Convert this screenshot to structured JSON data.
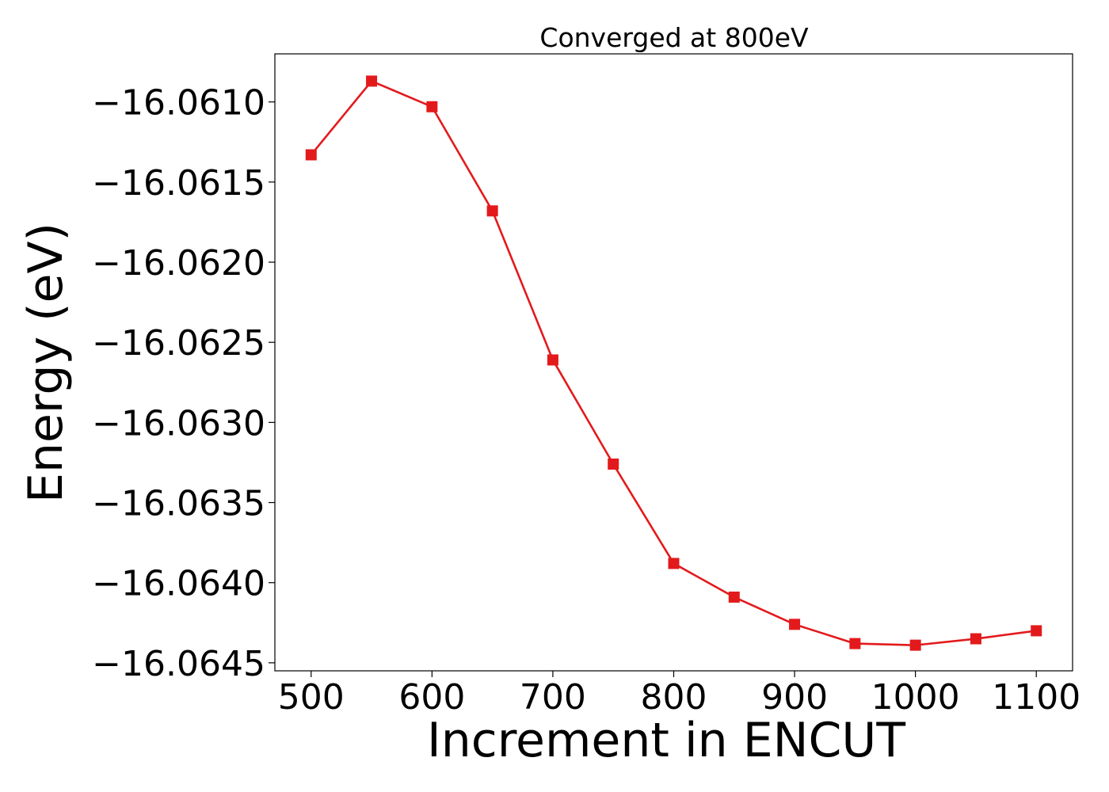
{
  "chart_data": {
    "type": "line",
    "title": "Converged at 800eV",
    "xlabel": "Increment in ENCUT",
    "ylabel": "Energy (eV)",
    "x": [
      500,
      550,
      600,
      650,
      700,
      750,
      800,
      850,
      900,
      950,
      1000,
      1050,
      1100
    ],
    "series": [
      {
        "values": [
          -16.06133,
          -16.06087,
          -16.06103,
          -16.06168,
          -16.06261,
          -16.06326,
          -16.06388,
          -16.06409,
          -16.06426,
          -16.06438,
          -16.06439,
          -16.06435,
          -16.0643
        ],
        "color": "#e31a1c",
        "marker": "square"
      }
    ],
    "xlim": [
      470,
      1130
    ],
    "ylim": [
      -16.06455,
      -16.0607
    ],
    "xticks": [
      500,
      600,
      700,
      800,
      900,
      1000,
      1100
    ],
    "xtick_labels": [
      "500",
      "600",
      "700",
      "800",
      "900",
      "1000",
      "1100"
    ],
    "yticks": [
      -16.061,
      -16.0615,
      -16.062,
      -16.0625,
      -16.063,
      -16.0635,
      -16.064,
      -16.0645
    ],
    "ytick_labels": [
      "−16.0610",
      "−16.0615",
      "−16.0620",
      "−16.0625",
      "−16.0630",
      "−16.0635",
      "−16.0640",
      "−16.0645"
    ],
    "grid": false,
    "legend": "none"
  }
}
